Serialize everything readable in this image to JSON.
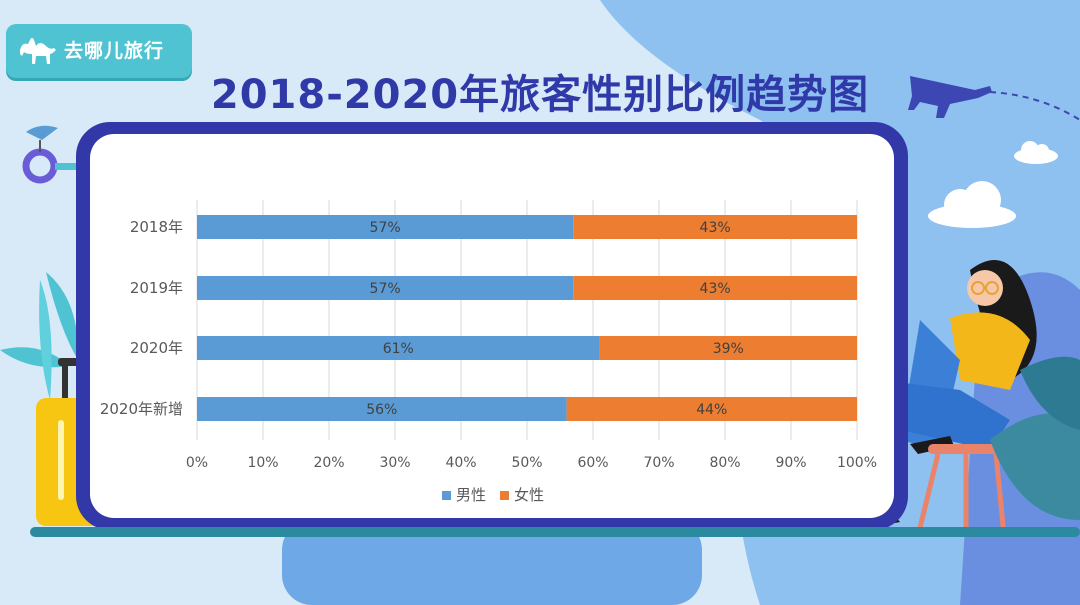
{
  "brand": {
    "name": "去哪儿旅行",
    "logo_icon": "camel-icon"
  },
  "colors": {
    "male": "#5b9bd5",
    "female": "#ed7d31",
    "title": "#2f3aa8",
    "board": "#3338a8"
  },
  "chart_data": {
    "type": "bar",
    "orientation": "horizontal",
    "stacked": "percent",
    "title": "2018-2020年旅客性别比例趋势图",
    "categories": [
      "2018年",
      "2019年",
      "2020年",
      "2020年新增"
    ],
    "series": [
      {
        "name": "男性",
        "values": [
          57,
          57,
          61,
          56
        ],
        "labels": [
          "57%",
          "57%",
          "61%",
          "56%"
        ]
      },
      {
        "name": "女性",
        "values": [
          43,
          43,
          39,
          44
        ],
        "labels": [
          "43%",
          "43%",
          "39%",
          "44%"
        ]
      }
    ],
    "xlim": [
      0,
      100
    ],
    "xticks": [
      "0%",
      "10%",
      "20%",
      "30%",
      "40%",
      "50%",
      "60%",
      "70%",
      "80%",
      "90%",
      "100%"
    ],
    "grid": true,
    "legend": "bottom"
  }
}
